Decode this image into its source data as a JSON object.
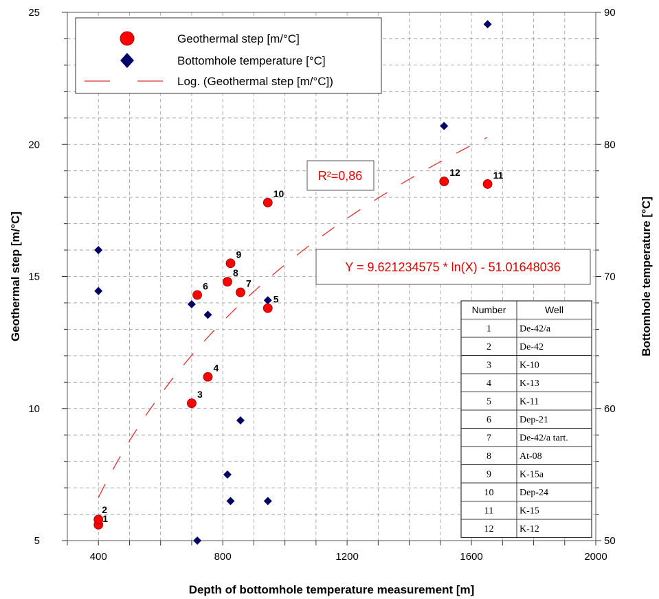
{
  "chart_data": {
    "type": "scatter",
    "xlabel": "Depth of bottomhole temperature measurement [m]",
    "ylabel_left": "Geothermal step [m/°C]",
    "ylabel_right": "Bottomhole temperature [°C]",
    "xlim": [
      300,
      2000
    ],
    "x_ticks": [
      400,
      800,
      1200,
      1600,
      2000
    ],
    "y_left_lim": [
      5,
      25
    ],
    "y_left_ticks": [
      5,
      10,
      15,
      20,
      25
    ],
    "y_right_lim": [
      50,
      90
    ],
    "y_right_ticks": [
      50,
      60,
      70,
      80,
      90
    ],
    "grid": true,
    "legend_position": "top-left",
    "series": [
      {
        "name": "Geothermal step [m/°C]",
        "marker": "circle",
        "color": "#ff0000",
        "axis": "left",
        "points": [
          {
            "label": "1",
            "x": 400,
            "y": 5.6
          },
          {
            "label": "2",
            "x": 400,
            "y": 5.8
          },
          {
            "label": "3",
            "x": 700,
            "y": 10.2
          },
          {
            "label": "4",
            "x": 752,
            "y": 11.2
          },
          {
            "label": "5",
            "x": 945,
            "y": 13.8
          },
          {
            "label": "6",
            "x": 718,
            "y": 14.3
          },
          {
            "label": "7",
            "x": 857,
            "y": 14.4
          },
          {
            "label": "8",
            "x": 815,
            "y": 14.8
          },
          {
            "label": "9",
            "x": 825,
            "y": 15.5
          },
          {
            "label": "10",
            "x": 945,
            "y": 17.8
          },
          {
            "label": "11",
            "x": 1652,
            "y": 18.5
          },
          {
            "label": "12",
            "x": 1512,
            "y": 18.6
          }
        ]
      },
      {
        "name": "Bottomhole temperature [°C]",
        "marker": "diamond",
        "color": "#000066",
        "axis": "right",
        "points": [
          {
            "x": 400,
            "y": 72.0
          },
          {
            "x": 400,
            "y": 68.9
          },
          {
            "x": 700,
            "y": 67.9
          },
          {
            "x": 752,
            "y": 67.1
          },
          {
            "x": 945,
            "y": 68.2
          },
          {
            "x": 718,
            "y": 50.0
          },
          {
            "x": 857,
            "y": 59.1
          },
          {
            "x": 815,
            "y": 55.0
          },
          {
            "x": 825,
            "y": 53.0
          },
          {
            "x": 945,
            "y": 53.0
          },
          {
            "x": 1652,
            "y": 89.1
          },
          {
            "x": 1512,
            "y": 81.4
          }
        ]
      },
      {
        "name": "Log. (Geothermal step [m/°C])",
        "type": "trendline",
        "style": "dashed",
        "color": "#e03030",
        "axis": "left",
        "x_range": [
          400,
          1650
        ]
      }
    ],
    "annotations": {
      "r2": "R²=0,86",
      "equation": "Y = 9.621234575 * ln(X) - 51.01648036"
    },
    "table": {
      "columns": [
        "Number",
        "Well"
      ],
      "rows": [
        [
          "1",
          "De-42/a"
        ],
        [
          "2",
          "De-42"
        ],
        [
          "3",
          "K-10"
        ],
        [
          "4",
          "K-13"
        ],
        [
          "5",
          "K-11"
        ],
        [
          "6",
          "Dep-21"
        ],
        [
          "7",
          "De-42/a tart."
        ],
        [
          "8",
          "At-08"
        ],
        [
          "9",
          "K-15a"
        ],
        [
          "10",
          "Dep-24"
        ],
        [
          "11",
          "K-15"
        ],
        [
          "12",
          "K-12"
        ]
      ]
    }
  }
}
